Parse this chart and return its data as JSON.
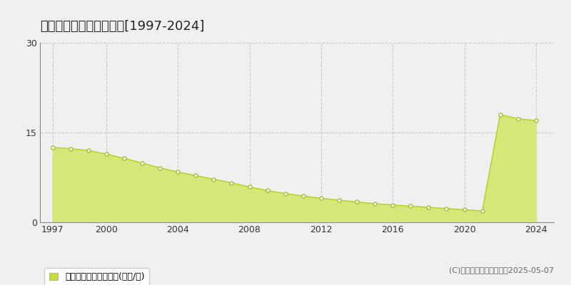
{
  "title": "南山城村　基準地価推移[1997-2024]",
  "years": [
    1997,
    1998,
    1999,
    2000,
    2001,
    2002,
    2003,
    2004,
    2005,
    2006,
    2007,
    2008,
    2009,
    2010,
    2011,
    2012,
    2013,
    2014,
    2015,
    2016,
    2017,
    2018,
    2019,
    2020,
    2021,
    2022,
    2023,
    2024
  ],
  "values": [
    12.5,
    12.3,
    12.0,
    11.4,
    10.7,
    9.9,
    9.1,
    8.4,
    7.8,
    7.2,
    6.6,
    5.9,
    5.3,
    4.8,
    4.4,
    4.0,
    3.7,
    3.4,
    3.1,
    2.9,
    2.7,
    2.5,
    2.3,
    2.1,
    1.9,
    18.0,
    17.3,
    17.0
  ],
  "ylim": [
    0,
    30
  ],
  "yticks": [
    0,
    15,
    30
  ],
  "xticks": [
    1997,
    2000,
    2004,
    2008,
    2012,
    2016,
    2020,
    2024
  ],
  "fill_color": "#d4e87a",
  "line_color": "#b8cc20",
  "marker_facecolor": "#ffffff",
  "marker_edgecolor": "#aabb30",
  "grid_color": "#cccccc",
  "bg_color": "#f0f0f0",
  "spine_color": "#888888",
  "legend_label": "基準地価　平均坪単価(万円/坪)",
  "legend_square_color": "#c8dc3c",
  "copyright_text": "(C)土地価格ドットコム　2025-05-07",
  "title_fontsize": 13,
  "axis_fontsize": 9,
  "legend_fontsize": 9,
  "copyright_fontsize": 8
}
